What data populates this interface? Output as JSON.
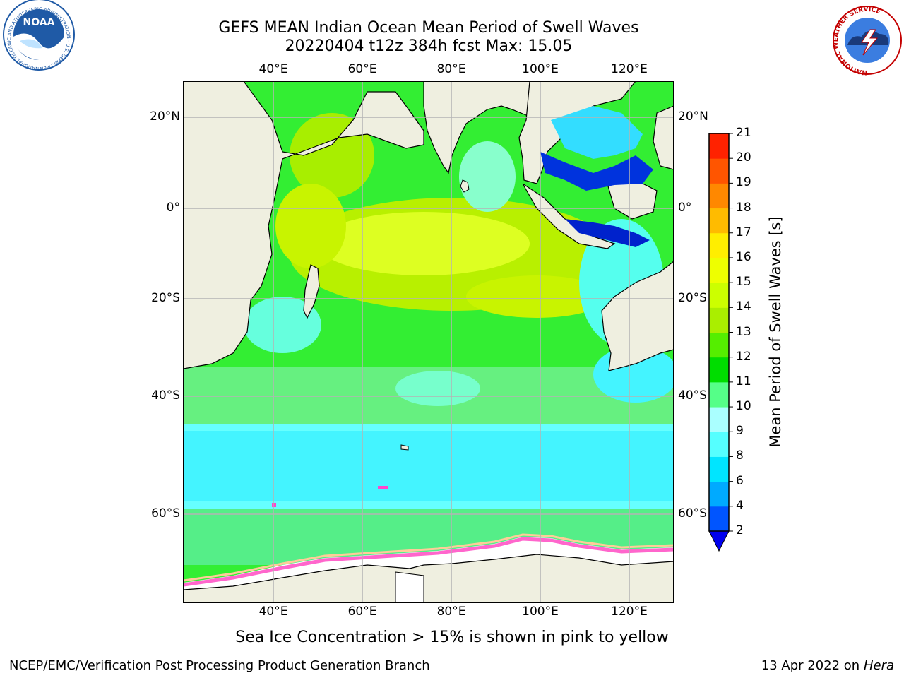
{
  "title": {
    "line1": "GEFS MEAN Indian Ocean Mean Period of Swell Waves",
    "line2": "20220404 t12z 384h fcst   Max: 15.05"
  },
  "map": {
    "lon_ticks": [
      "40°E",
      "60°E",
      "80°E",
      "100°E",
      "120°E"
    ],
    "lat_ticks": [
      "20°N",
      "0°",
      "20°S",
      "40°S",
      "60°S"
    ],
    "extent": {
      "lon": [
        20,
        130
      ],
      "lat": [
        -73,
        27
      ]
    },
    "colors": {
      "land": "#efefe0",
      "grid": "#b4b4b4",
      "sea_ice": "#ff66cc"
    }
  },
  "colorbar": {
    "label": "Mean Period of Swell Waves [s]",
    "ticks": [
      "21",
      "20",
      "19",
      "18",
      "17",
      "16",
      "15",
      "14",
      "13",
      "12",
      "11",
      "10",
      "9",
      "8",
      "6",
      "4",
      "2"
    ],
    "levels": [
      2,
      4,
      6,
      8,
      9,
      10,
      11,
      12,
      13,
      14,
      15,
      16,
      17,
      18,
      19,
      20,
      21
    ],
    "colors": [
      "#0055ff",
      "#00aaff",
      "#00e5ff",
      "#55ffff",
      "#aaffff",
      "#55ff88",
      "#00dd00",
      "#55ee00",
      "#aaee00",
      "#ccff00",
      "#eeff00",
      "#ffee00",
      "#ffbb00",
      "#ff8800",
      "#ff5500",
      "#ff2200"
    ],
    "under_color": "#0000ee"
  },
  "caption": "Sea Ice Concentration > 15% is shown in pink to yellow",
  "footer": {
    "left": "NCEP/EMC/Verification Post Processing Product Generation Branch",
    "date": "13 Apr 2022 on",
    "machine": "Hera"
  },
  "logos": {
    "noaa_text": "NOAA",
    "noaa_ring": "NATIONAL OCEANIC AND ATMOSPHERIC ADMINISTRATION · U.S. DEPARTMENT OF COMMERCE",
    "nws_ring": "NATIONAL WEATHER SERVICE"
  }
}
